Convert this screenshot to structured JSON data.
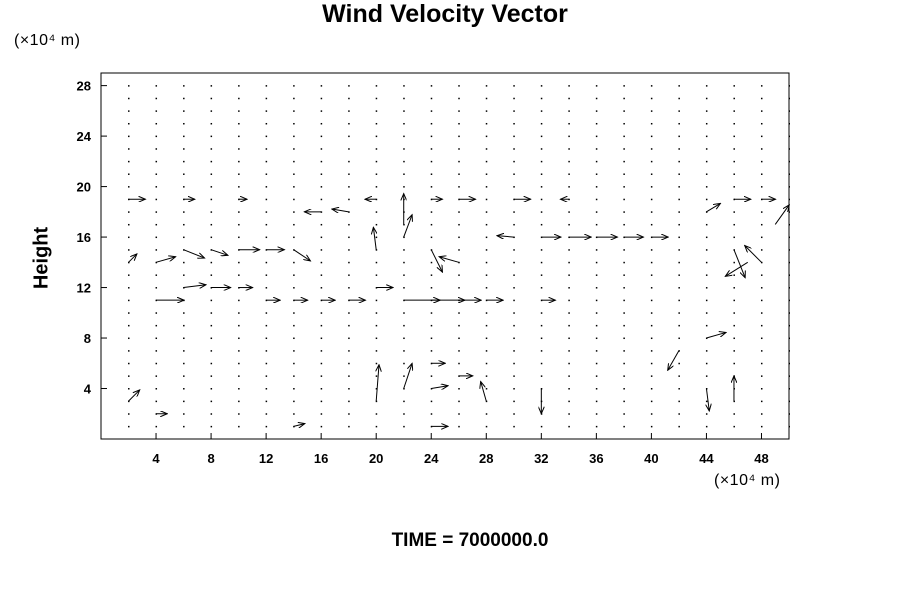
{
  "chart_data": {
    "type": "vector_field",
    "title": "Wind Velocity Vector",
    "ylabel": "Height",
    "x_unit": "(×10⁴ m)",
    "y_unit": "(×10⁴ m)",
    "footer": "TIME = 7000000.0",
    "xlim": [
      0,
      50
    ],
    "ylim": [
      0,
      29
    ],
    "x_ticks": [
      "4",
      "8",
      "12",
      "16",
      "20",
      "24",
      "28",
      "32",
      "36",
      "40",
      "44",
      "48"
    ],
    "y_ticks": [
      "4",
      "8",
      "12",
      "16",
      "20",
      "24",
      "28"
    ],
    "grid": false,
    "vectors": [
      {
        "x": 2,
        "y": 19,
        "u": 1.2,
        "v": 0
      },
      {
        "x": 6,
        "y": 19,
        "u": 0.8,
        "v": 0
      },
      {
        "x": 10,
        "y": 19,
        "u": 0.6,
        "v": 0
      },
      {
        "x": 16,
        "y": 18,
        "u": -1.2,
        "v": 0
      },
      {
        "x": 18,
        "y": 18,
        "u": -1.2,
        "v": 0.2
      },
      {
        "x": 20,
        "y": 19,
        "u": -0.8,
        "v": 0
      },
      {
        "x": 22,
        "y": 17,
        "u": 0,
        "v": 2.2
      },
      {
        "x": 24,
        "y": 19,
        "u": 0.8,
        "v": 0
      },
      {
        "x": 26,
        "y": 19,
        "u": 1.2,
        "v": 0
      },
      {
        "x": 30,
        "y": 19,
        "u": 1.2,
        "v": 0
      },
      {
        "x": 34,
        "y": 19,
        "u": -0.6,
        "v": 0
      },
      {
        "x": 44,
        "y": 18,
        "u": 1.0,
        "v": 0.6
      },
      {
        "x": 46,
        "y": 19,
        "u": 1.2,
        "v": 0
      },
      {
        "x": 48,
        "y": 19,
        "u": 1.0,
        "v": 0
      },
      {
        "x": 2,
        "y": 14,
        "u": 0.6,
        "v": 0.6
      },
      {
        "x": 4,
        "y": 14,
        "u": 1.4,
        "v": 0.4
      },
      {
        "x": 6,
        "y": 15,
        "u": 1.5,
        "v": -0.6
      },
      {
        "x": 8,
        "y": 15,
        "u": 1.2,
        "v": -0.4
      },
      {
        "x": 10,
        "y": 15,
        "u": 1.5,
        "v": 0
      },
      {
        "x": 12,
        "y": 15,
        "u": 1.3,
        "v": 0
      },
      {
        "x": 14,
        "y": 15,
        "u": 1.2,
        "v": -0.8
      },
      {
        "x": 20,
        "y": 15,
        "u": -0.2,
        "v": 1.6
      },
      {
        "x": 22,
        "y": 16,
        "u": 0.6,
        "v": 1.6
      },
      {
        "x": 24,
        "y": 15,
        "u": 0.8,
        "v": -1.6
      },
      {
        "x": 26,
        "y": 14,
        "u": -1.4,
        "v": 0.4
      },
      {
        "x": 30,
        "y": 16,
        "u": -1.2,
        "v": 0.1
      },
      {
        "x": 32,
        "y": 16,
        "u": 1.4,
        "v": 0
      },
      {
        "x": 34,
        "y": 16,
        "u": 1.6,
        "v": 0
      },
      {
        "x": 36,
        "y": 16,
        "u": 1.5,
        "v": 0
      },
      {
        "x": 38,
        "y": 16,
        "u": 1.4,
        "v": 0
      },
      {
        "x": 40,
        "y": 16,
        "u": 1.2,
        "v": 0
      },
      {
        "x": 46,
        "y": 15,
        "u": 0.8,
        "v": -2.0
      },
      {
        "x": 47,
        "y": 14,
        "u": -1.6,
        "v": -1.0
      },
      {
        "x": 48,
        "y": 14,
        "u": -1.2,
        "v": 1.2
      },
      {
        "x": 49,
        "y": 17,
        "u": 1.0,
        "v": 1.4
      },
      {
        "x": 4,
        "y": 11,
        "u": 2.0,
        "v": 0
      },
      {
        "x": 6,
        "y": 12,
        "u": 1.6,
        "v": 0.2
      },
      {
        "x": 8,
        "y": 12,
        "u": 1.4,
        "v": 0
      },
      {
        "x": 10,
        "y": 12,
        "u": 1.0,
        "v": 0
      },
      {
        "x": 12,
        "y": 11,
        "u": 1.0,
        "v": 0
      },
      {
        "x": 14,
        "y": 11,
        "u": 1.0,
        "v": 0
      },
      {
        "x": 16,
        "y": 11,
        "u": 1.0,
        "v": 0
      },
      {
        "x": 18,
        "y": 11,
        "u": 1.2,
        "v": 0
      },
      {
        "x": 20,
        "y": 12,
        "u": 1.2,
        "v": 0
      },
      {
        "x": 22,
        "y": 11,
        "u": 2.6,
        "v": 0
      },
      {
        "x": 24,
        "y": 11,
        "u": 2.4,
        "v": 0
      },
      {
        "x": 26,
        "y": 11,
        "u": 1.6,
        "v": 0
      },
      {
        "x": 28,
        "y": 11,
        "u": 1.2,
        "v": 0
      },
      {
        "x": 32,
        "y": 11,
        "u": 1.0,
        "v": 0
      },
      {
        "x": 2,
        "y": 3,
        "u": 0.8,
        "v": 0.8
      },
      {
        "x": 4,
        "y": 2,
        "u": 0.8,
        "v": 0
      },
      {
        "x": 14,
        "y": 1,
        "u": 0.8,
        "v": 0.2
      },
      {
        "x": 20,
        "y": 3,
        "u": 0.2,
        "v": 2.6
      },
      {
        "x": 22,
        "y": 4,
        "u": 0.6,
        "v": 1.8
      },
      {
        "x": 24,
        "y": 6,
        "u": 1.0,
        "v": 0
      },
      {
        "x": 24,
        "y": 4,
        "u": 1.2,
        "v": 0.2
      },
      {
        "x": 26,
        "y": 5,
        "u": 1.0,
        "v": 0
      },
      {
        "x": 28,
        "y": 3,
        "u": -0.4,
        "v": 1.4
      },
      {
        "x": 32,
        "y": 4,
        "u": 0,
        "v": -1.8
      },
      {
        "x": 42,
        "y": 7,
        "u": -0.8,
        "v": -1.4
      },
      {
        "x": 44,
        "y": 8,
        "u": 1.4,
        "v": 0.4
      },
      {
        "x": 44,
        "y": 4,
        "u": 0.2,
        "v": -1.6
      },
      {
        "x": 46,
        "y": 3,
        "u": 0,
        "v": 1.8
      },
      {
        "x": 24,
        "y": 1,
        "u": 1.2,
        "v": 0
      }
    ]
  }
}
